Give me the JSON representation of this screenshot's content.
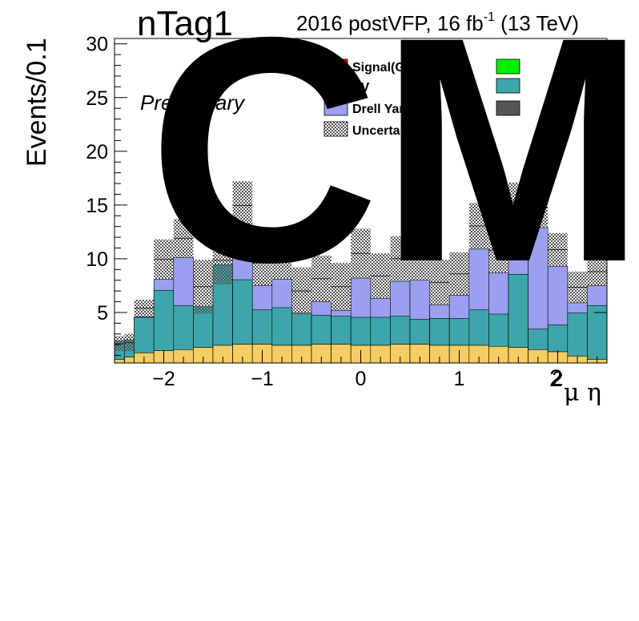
{
  "header": {
    "cms_text": "CMS",
    "ntag": "nTag1",
    "lumi_main": "2016 postVFP, 16 fb",
    "lumi_sup": "-1",
    "lumi_tail": " (13 TeV)",
    "preliminary": "Preliminary"
  },
  "colors": {
    "signal": "#ff0000",
    "vv": "#f5cd63",
    "drell_yan": "#9aa0ef",
    "top": "#3da6aa",
    "w_jets": "#00ee00",
    "other": "#555555",
    "uncertainty": "#777777"
  },
  "legend": {
    "signal": "Signal(GG→ WW)",
    "vv": "VV",
    "drell_yan": "Drell Yan",
    "uncertainty": "Uncertainty"
  },
  "chart_data": {
    "type": "bar",
    "stacked": true,
    "x_range": [
      -2.5,
      2.5
    ],
    "bin_width": 0.2,
    "bin_edges": [
      -2.5,
      -2.4,
      -2.3,
      -2.1,
      -1.9,
      -1.7,
      -1.5,
      -1.3,
      -1.1,
      -0.9,
      -0.7,
      -0.5,
      -0.3,
      -0.1,
      0.1,
      0.3,
      0.5,
      0.7,
      0.9,
      1.1,
      1.3,
      1.5,
      1.7,
      1.9,
      2.1,
      2.3,
      2.5
    ],
    "ylim": [
      0.3,
      30.5
    ],
    "yticks": [
      5,
      10,
      15,
      20,
      25,
      30
    ],
    "xticks": [
      -2,
      -1,
      0,
      1,
      2
    ],
    "xtick_labels": [
      "−2",
      "−1",
      "0",
      "1",
      "2"
    ],
    "xlabel": "μ η",
    "xlabel_prefix": "2",
    "ylabel": "Events/0.1",
    "series": [
      {
        "name": "Signal(GG→ WW)",
        "values": [
          0.05,
          0.05,
          0.05,
          0.05,
          0.05,
          0.05,
          0.05,
          0.05,
          0.05,
          0.05,
          0.05,
          0.05,
          0.05,
          0.05,
          0.05,
          0.05,
          0.05,
          0.05,
          0.05,
          0.05,
          0.05,
          0.05,
          0.05,
          0.05,
          0.05,
          0.05
        ]
      },
      {
        "name": "VV",
        "values": [
          0.6,
          0.8,
          1.2,
          1.4,
          1.5,
          1.7,
          1.9,
          2.0,
          2.0,
          1.9,
          1.9,
          2.0,
          2.0,
          1.9,
          1.9,
          2.0,
          2.0,
          1.9,
          1.9,
          1.9,
          1.8,
          1.7,
          1.5,
          1.3,
          0.9,
          0.6
        ]
      },
      {
        "name": "Drell Yan",
        "values": [
          1.7,
          1.6,
          3.3,
          5.6,
          4.1,
          3.8,
          7.5,
          6.0,
          3.2,
          3.5,
          3.0,
          2.7,
          2.6,
          2.6,
          2.6,
          2.6,
          2.3,
          2.5,
          2.5,
          3.3,
          3.0,
          6.8,
          1.9,
          2.5,
          4.0,
          5.0
        ]
      },
      {
        "name": "Uncertainty",
        "values": [
          1.4,
          1.6,
          1.6,
          3.7,
          3.6,
          5.0,
          4.5,
          4.5,
          4.2,
          4.0,
          4.4,
          4.3,
          4.4,
          4.6,
          4.2,
          4.2,
          4.3,
          4.2,
          4.0,
          4.3,
          4.2,
          3.5,
          3.7,
          3.1,
          2.9,
          2.6
        ]
      }
    ],
    "total": [
      2.8,
      3.0,
      6.2,
      11.8,
      13.7,
      9.9,
      12.1,
      17.2,
      11.7,
      12.1,
      9.2,
      10.3,
      9.6,
      12.8,
      10.5,
      12.1,
      12.3,
      9.9,
      10.6,
      15.2,
      12.9,
      17.1,
      16.6,
      12.4,
      8.8,
      10.1
    ]
  }
}
